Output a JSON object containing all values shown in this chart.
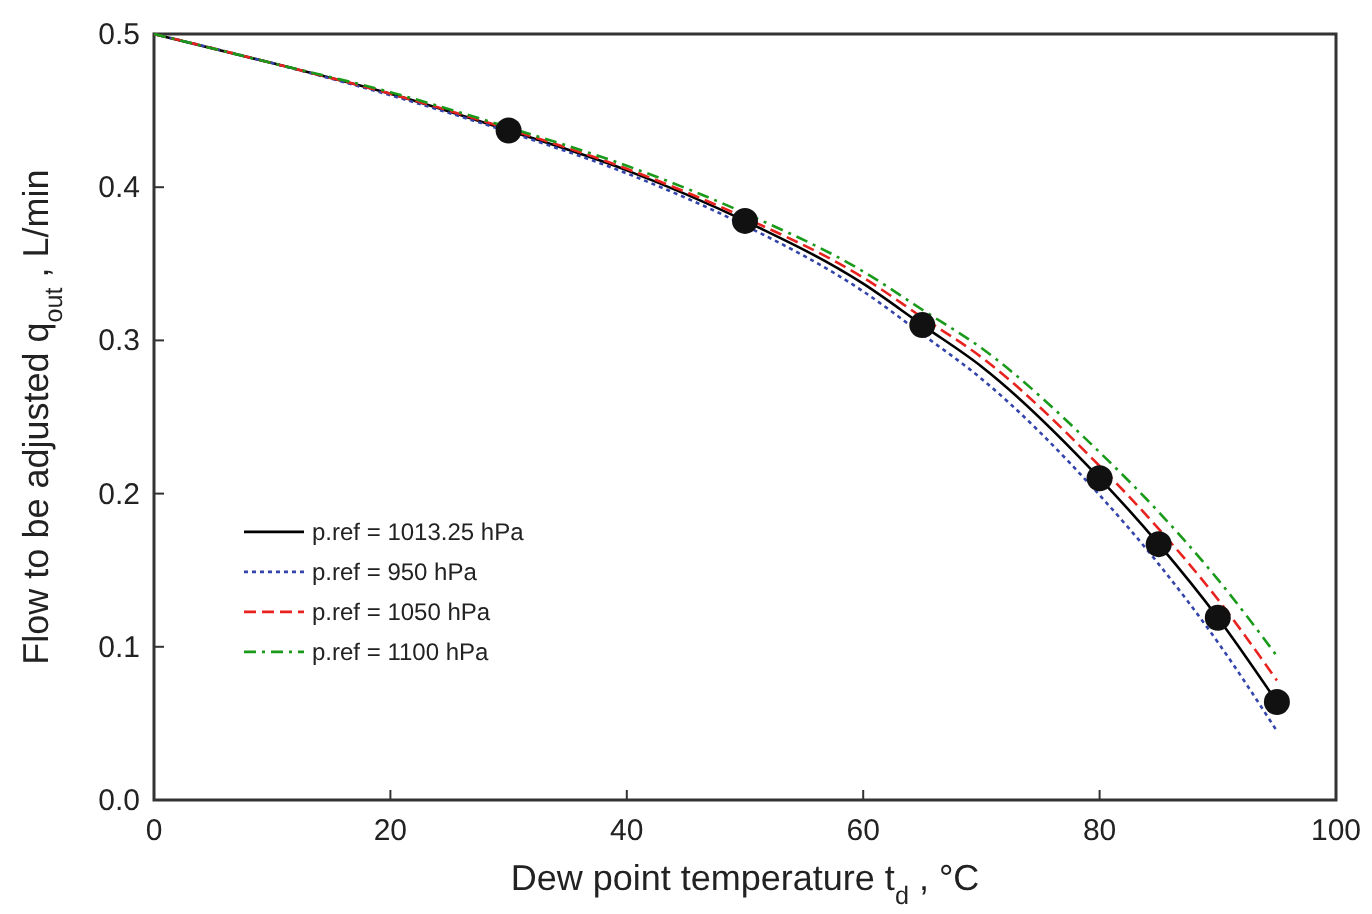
{
  "chart_data": {
    "type": "line",
    "xlabel": "Dew point temperature  t$_{d}$ , °C",
    "ylabel": "Flow to be adjusted q$_{out}$ , L/min",
    "x": [
      0,
      10,
      20,
      30,
      40,
      50,
      60,
      65,
      70,
      80,
      85,
      90,
      95
    ],
    "series": [
      {
        "name": "p.ref = 1013.25 hPa",
        "color": "#000000",
        "line_style": "solid",
        "values": [
          0.5,
          0.481,
          0.461,
          0.437,
          0.411,
          0.378,
          0.337,
          0.31,
          0.283,
          0.21,
          0.167,
          0.119,
          0.064
        ]
      },
      {
        "name": "p.ref = 950 hPa",
        "color": "#3344aa",
        "line_style": "dotted",
        "values": [
          0.5,
          0.481,
          0.46,
          0.436,
          0.409,
          0.375,
          0.332,
          0.304,
          0.275,
          0.199,
          0.154,
          0.103,
          0.045
        ]
      },
      {
        "name": "p.ref = 1050 hPa",
        "color": "#e8231f",
        "line_style": "dashed",
        "values": [
          0.5,
          0.481,
          0.461,
          0.438,
          0.412,
          0.38,
          0.341,
          0.315,
          0.289,
          0.218,
          0.177,
          0.131,
          0.078
        ]
      },
      {
        "name": "p.ref = 1100 hPa",
        "color": "#1a9a1a",
        "line_style": "dashdot",
        "values": [
          0.5,
          0.481,
          0.462,
          0.439,
          0.414,
          0.383,
          0.345,
          0.32,
          0.295,
          0.227,
          0.188,
          0.144,
          0.094
        ]
      },
      {
        "type": "scatter",
        "color": "#111111",
        "marker": "circle",
        "x": [
          30,
          50,
          65,
          80,
          85,
          90,
          95
        ],
        "values": [
          0.437,
          0.378,
          0.31,
          0.21,
          0.167,
          0.119,
          0.064
        ]
      }
    ],
    "xlim": [
      0,
      100
    ],
    "xticks": [
      0,
      20,
      40,
      60,
      80,
      100
    ],
    "ylim": [
      0,
      0.5
    ],
    "yticks": [
      {
        "value": 0,
        "label": "0.0"
      },
      0.1,
      0.2,
      0.3,
      0.4,
      0.5
    ],
    "grid": false,
    "legend": "left"
  }
}
